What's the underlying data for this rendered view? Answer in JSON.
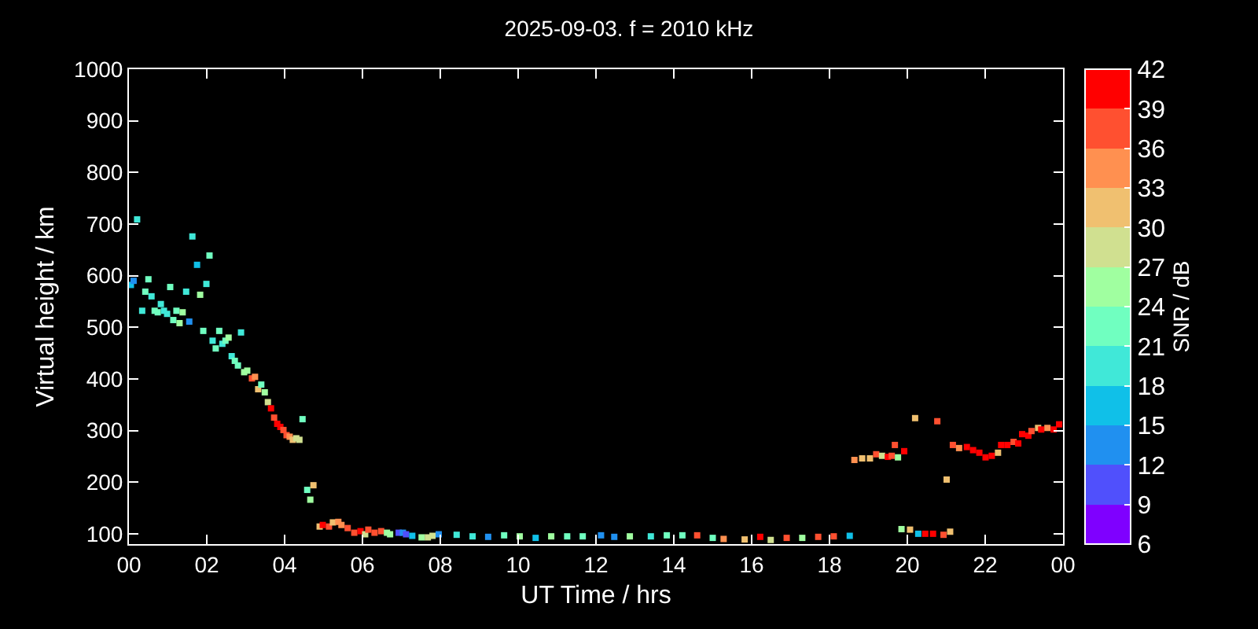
{
  "chart_data": {
    "type": "scatter",
    "title": "2025-09-03. f = 2010 kHz",
    "xlabel": "UT Time / hrs",
    "ylabel": "Virtual height / km",
    "clabel": "SNR / dB",
    "x": [
      0.05,
      0.12,
      0.21,
      0.34,
      0.42,
      0.5,
      0.58,
      0.66,
      0.74,
      0.82,
      0.9,
      0.98,
      1.06,
      1.14,
      1.22,
      1.3,
      1.38,
      1.47,
      1.55,
      1.63,
      1.75,
      1.83,
      1.91,
      1.99,
      2.07,
      2.15,
      2.23,
      2.32,
      2.4,
      2.48,
      2.56,
      2.64,
      2.72,
      2.8,
      2.88,
      2.96,
      3.04,
      3.16,
      3.24,
      3.32,
      3.4,
      3.49,
      3.57,
      3.65,
      3.73,
      3.81,
      3.89,
      3.97,
      4.05,
      4.13,
      4.21,
      4.3,
      4.38,
      4.46,
      4.58,
      4.66,
      4.74,
      4.9,
      4.98,
      5.14,
      5.24,
      5.38,
      5.46,
      5.62,
      5.79,
      5.95,
      6.07,
      6.15,
      6.31,
      6.48,
      6.63,
      6.71,
      6.93,
      7.04,
      7.12,
      7.28,
      7.52,
      7.68,
      7.8,
      7.96,
      8.42,
      8.83,
      9.23,
      9.64,
      10.04,
      10.45,
      10.85,
      11.26,
      11.66,
      12.13,
      12.47,
      12.87,
      13.41,
      13.82,
      14.22,
      14.6,
      15.0,
      15.28,
      15.82,
      16.22,
      16.49,
      16.9,
      17.3,
      17.71,
      18.11,
      18.52,
      18.64,
      18.84,
      19.04,
      19.2,
      19.35,
      19.5,
      19.6,
      19.68,
      19.76,
      19.85,
      19.92,
      20.07,
      20.2,
      20.28,
      20.46,
      20.66,
      20.77,
      20.93,
      21.01,
      21.1,
      21.17,
      21.33,
      21.53,
      21.69,
      21.85,
      22.01,
      22.17,
      22.33,
      22.41,
      22.57,
      22.73,
      22.85,
      22.95,
      23.11,
      23.19,
      23.36,
      23.44,
      23.6,
      23.76,
      23.9
    ],
    "values": [
      582,
      590,
      709,
      532,
      569,
      593,
      560,
      532,
      529,
      545,
      532,
      526,
      578,
      514,
      532,
      508,
      529,
      569,
      511,
      676,
      621,
      563,
      493,
      584,
      639,
      474,
      459,
      493,
      468,
      474,
      480,
      444,
      435,
      426,
      490,
      413,
      416,
      401,
      404,
      380,
      389,
      374,
      355,
      343,
      325,
      313,
      307,
      301,
      291,
      288,
      282,
      285,
      282,
      322,
      185,
      166,
      194,
      114,
      117,
      114,
      122,
      123,
      117,
      111,
      102,
      105,
      99,
      108,
      102,
      105,
      102,
      99,
      102,
      102,
      99,
      96,
      93,
      93,
      96,
      99,
      98,
      95,
      94,
      97,
      95,
      92,
      95,
      95,
      95,
      97,
      94,
      95,
      95,
      97,
      97,
      97,
      92,
      90,
      89,
      94,
      88,
      92,
      92,
      94,
      95,
      96,
      243,
      246,
      246,
      254,
      251,
      249,
      251,
      272,
      248,
      109,
      260,
      108,
      324,
      100,
      100,
      100,
      318,
      98,
      205,
      104,
      272,
      266,
      268,
      262,
      257,
      248,
      251,
      257,
      272,
      272,
      278,
      275,
      293,
      290,
      299,
      305,
      302,
      305,
      302,
      312
    ],
    "cvalues": [
      17,
      13,
      20,
      20,
      21,
      22,
      20,
      22,
      22,
      20,
      20,
      20,
      22,
      23,
      23,
      25,
      24,
      20,
      14,
      20,
      16,
      24,
      22,
      20,
      22,
      20,
      23,
      22,
      20,
      22,
      24,
      20,
      21,
      23,
      20,
      26,
      24,
      37,
      35,
      31,
      22,
      26,
      28,
      40,
      38,
      40,
      40,
      38,
      36,
      34,
      31,
      28,
      28,
      22,
      22,
      24,
      31,
      31,
      40,
      36,
      30,
      33,
      33,
      36,
      38,
      40,
      27,
      38,
      38,
      37,
      26,
      26,
      10,
      12,
      11,
      17,
      25,
      27,
      29,
      13,
      19,
      20,
      13,
      22,
      25,
      17,
      24,
      22,
      21,
      13,
      12,
      25,
      19,
      22,
      23,
      36,
      22,
      35,
      30,
      40,
      29,
      37,
      24,
      38,
      38,
      16,
      34,
      31,
      31,
      37,
      27,
      40,
      37,
      37,
      25,
      25,
      40,
      30,
      31,
      15,
      40,
      40,
      38,
      38,
      31,
      31,
      36,
      33,
      40,
      40,
      40,
      40,
      40,
      30,
      40,
      40,
      38,
      40,
      40,
      40,
      38,
      32,
      40,
      33,
      40,
      40
    ],
    "xlim": [
      0,
      24
    ],
    "ylim": [
      80,
      1000
    ],
    "xticks": [
      {
        "value": 0,
        "label": "00"
      },
      {
        "value": 2,
        "label": "02"
      },
      {
        "value": 4,
        "label": "04"
      },
      {
        "value": 6,
        "label": "06"
      },
      {
        "value": 8,
        "label": "08"
      },
      {
        "value": 10,
        "label": "10"
      },
      {
        "value": 12,
        "label": "12"
      },
      {
        "value": 14,
        "label": "14"
      },
      {
        "value": 16,
        "label": "16"
      },
      {
        "value": 18,
        "label": "18"
      },
      {
        "value": 20,
        "label": "20"
      },
      {
        "value": 22,
        "label": "22"
      },
      {
        "value": 24,
        "label": "00"
      }
    ],
    "yticks": [
      100,
      200,
      300,
      400,
      500,
      600,
      700,
      800,
      900,
      1000
    ],
    "clim": [
      6,
      42
    ],
    "cticks": [
      6,
      9,
      12,
      15,
      18,
      21,
      24,
      27,
      30,
      33,
      36,
      39,
      42
    ],
    "marker": "square",
    "grid": false,
    "legend": false
  }
}
